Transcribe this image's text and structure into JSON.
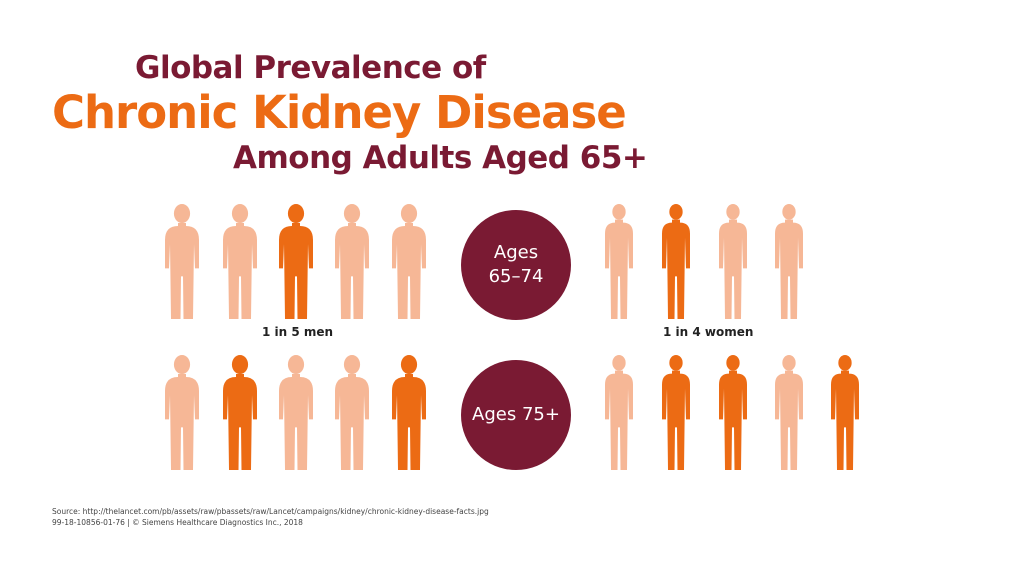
{
  "title": {
    "line1": "Global Prevalence of",
    "line2": "Chronic Kidney Disease",
    "line3": "Among Adults Aged 65+"
  },
  "colors": {
    "highlight": "#ec6b14",
    "muted": "#f6b796",
    "badge": "#7a1a33"
  },
  "rows": [
    {
      "badge": {
        "line1": "Ages",
        "line2": "65–74"
      },
      "men": {
        "caption": "1 in 5 men",
        "figures": [
          false,
          false,
          true,
          false,
          false
        ]
      },
      "women": {
        "caption": "1 in 4 women",
        "figures": [
          false,
          true,
          false,
          false
        ]
      }
    },
    {
      "badge": {
        "line1": "Ages 75+",
        "line2": ""
      },
      "men": {
        "caption": "",
        "figures": [
          false,
          true,
          false,
          false,
          true
        ]
      },
      "women": {
        "caption": "",
        "figures": [
          false,
          true,
          true,
          false,
          true
        ]
      }
    }
  ],
  "footer": {
    "source": "Source: http://thelancet.com/pb/assets/raw/pbassets/raw/Lancet/campaigns/kidney/chronic-kidney-disease-facts.jpg",
    "copyright": "99-18-10856-01-76  |  © Siemens Healthcare Diagnostics Inc., 2018"
  }
}
